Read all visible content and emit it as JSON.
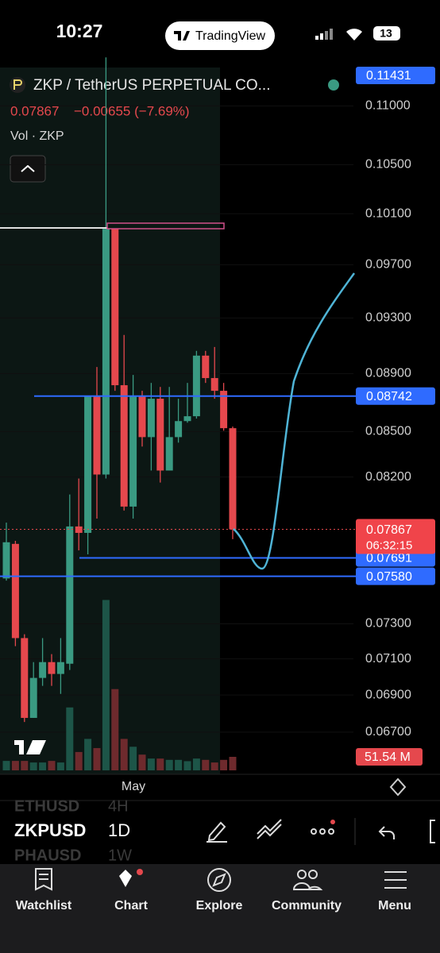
{
  "status": {
    "time": "10:27",
    "app": "TradingView",
    "battery": "13"
  },
  "header": {
    "symbol": "ZKP / TetherUS PERPETUAL CO...",
    "price": "0.07867",
    "change": "−0.00655 (−7.69%)",
    "volume_label": "Vol · ZKP"
  },
  "chart_data": {
    "type": "candlestick",
    "log_scale": true,
    "ylim": [
      0.0648,
      0.1134
    ],
    "yticks": [
      {
        "value": 0.11,
        "label": "0.11000"
      },
      {
        "value": 0.105,
        "label": "0.10500"
      },
      {
        "value": 0.101,
        "label": "0.10100"
      },
      {
        "value": 0.097,
        "label": "0.09700"
      },
      {
        "value": 0.093,
        "label": "0.09300"
      },
      {
        "value": 0.089,
        "label": "0.08900"
      },
      {
        "value": 0.085,
        "label": "0.08500"
      },
      {
        "value": 0.082,
        "label": "0.08200"
      },
      {
        "value": 0.073,
        "label": "0.07300"
      },
      {
        "value": 0.071,
        "label": "0.07100"
      },
      {
        "value": 0.069,
        "label": "0.06900"
      },
      {
        "value": 0.067,
        "label": "0.06700"
      }
    ],
    "x_label": "May",
    "candles": {
      "open": [
        0.07567,
        0.07777,
        0.07218,
        0.06776,
        0.06994,
        0.07082,
        0.07016,
        0.07073,
        0.07885,
        0.07845,
        0.08741,
        0.08216,
        0.0998,
        0.08818,
        0.0801,
        0.08741,
        0.08463,
        0.08724,
        0.08242,
        0.08463,
        0.08571,
        0.08604,
        0.09027,
        0.08868,
        0.08779,
        0.08523
      ],
      "high": [
        0.07909,
        0.07796,
        0.0724,
        0.07082,
        0.07218,
        0.07127,
        0.07218,
        0.08087,
        0.0819,
        0.08741,
        0.08946,
        0.11431,
        0.0998,
        0.09176,
        0.0889,
        0.08779,
        0.08834,
        0.08806,
        0.08806,
        0.08724,
        0.08834,
        0.09061,
        0.09061,
        0.09089,
        0.08834,
        0.08534
      ],
      "low": [
        0.07554,
        0.07172,
        0.06754,
        0.06776,
        0.0695,
        0.0695,
        0.06906,
        0.07038,
        0.07737,
        0.07713,
        0.07934,
        0.0819,
        0.08779,
        0.07985,
        0.07934,
        0.084,
        0.08242,
        0.08164,
        0.084,
        0.08426,
        0.0856,
        0.08588,
        0.08834,
        0.08724,
        0.08506,
        0.07806
      ],
      "close": [
        0.07787,
        0.07218,
        0.06776,
        0.06994,
        0.07082,
        0.07016,
        0.07082,
        0.07885,
        0.07845,
        0.08741,
        0.08216,
        0.0998,
        0.08818,
        0.0801,
        0.08741,
        0.08463,
        0.08724,
        0.08242,
        0.08463,
        0.08571,
        0.08604,
        0.09027,
        0.08868,
        0.08779,
        0.08523,
        0.07867
      ]
    },
    "volume": {
      "values": [
        36,
        36,
        36,
        30,
        30,
        36,
        30,
        240,
        70,
        120,
        85,
        650,
        310,
        120,
        90,
        60,
        45,
        45,
        40,
        40,
        35,
        45,
        40,
        30,
        40,
        51.54
      ],
      "value_labels": [
        null,
        null,
        null,
        null,
        null,
        null,
        null,
        null,
        null,
        null,
        null,
        null,
        null,
        null,
        null,
        null,
        null,
        null,
        null,
        null,
        null,
        null,
        null,
        null,
        null,
        "51.54 M"
      ]
    },
    "high_badge": {
      "value": 0.11431,
      "label": "0.11431"
    },
    "levels": [
      {
        "value": 0.08742,
        "label": "0.08742"
      },
      {
        "value": 0.07691,
        "label": "0.07691"
      },
      {
        "value": 0.0758,
        "label": "0.07580"
      }
    ],
    "last_price": {
      "value": 0.07867,
      "label": "0.07867"
    },
    "countdown": "06:32:15",
    "colors": {
      "up": "#3a9a82",
      "down": "#e5484d",
      "level": "#2f6bff"
    }
  },
  "picker": {
    "rows": [
      {
        "symbol": "ETHUSD",
        "interval": "4H"
      },
      {
        "symbol": "ZKPUSD",
        "interval": "1D"
      },
      {
        "symbol": "PHAUSD",
        "interval": "1W"
      }
    ]
  },
  "tabs": [
    "Watchlist",
    "Chart",
    "Explore",
    "Community",
    "Menu"
  ]
}
